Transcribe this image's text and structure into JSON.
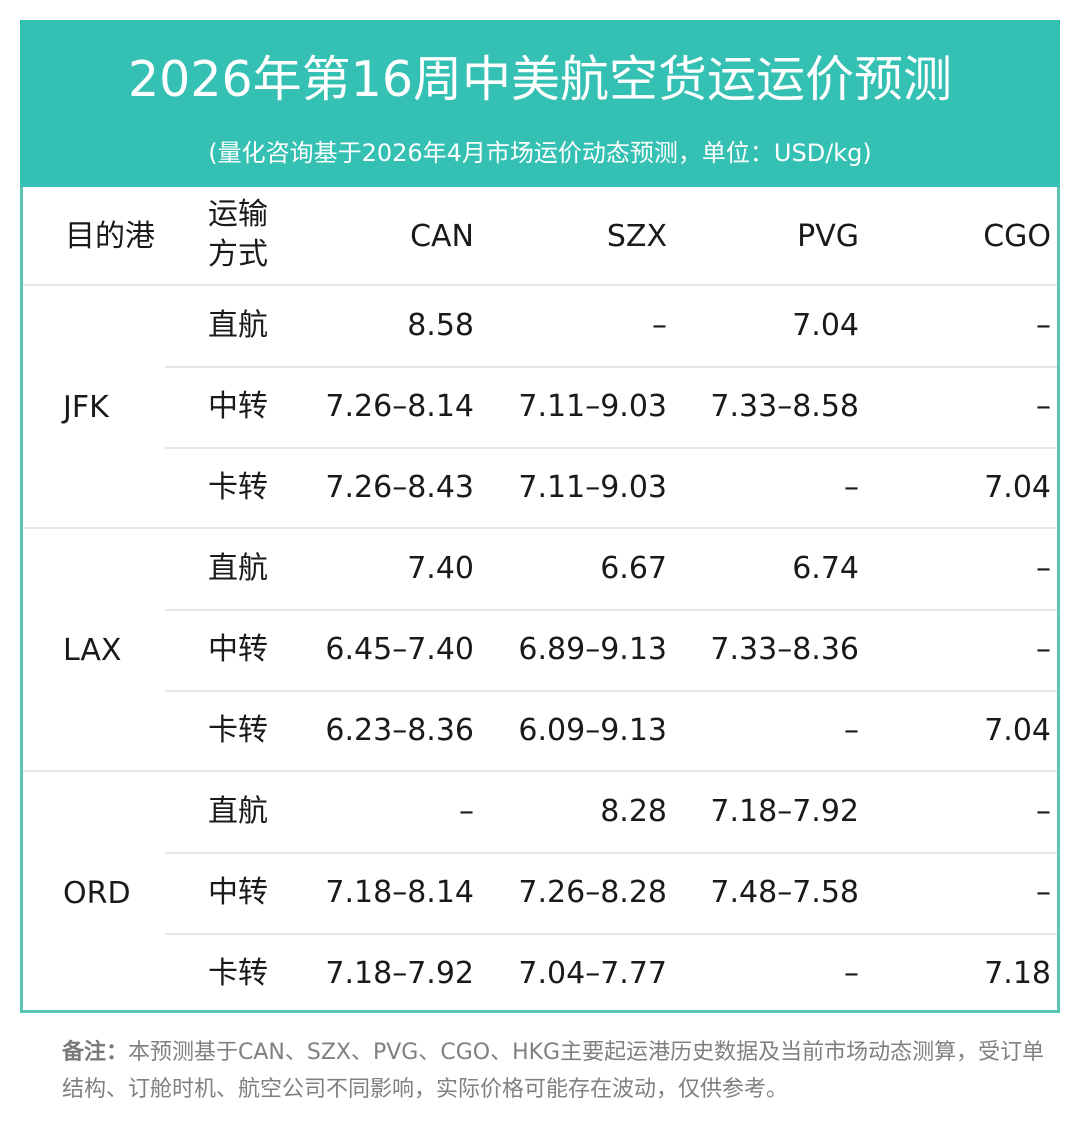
{
  "header": {
    "title": "2026年第16周中美航空货运运价预测",
    "subtitle": "(量化咨询基于2026年4月市场运价动态预测，单位：USD/kg)"
  },
  "colors": {
    "header_bg": "#34c0b2",
    "border": "#5cc4b7",
    "row_separator": "#e6e6e6",
    "note_text": "#808080"
  },
  "table": {
    "columns": {
      "dest": "目的港",
      "mode_line1": "运输",
      "mode_line2": "方式",
      "can": "CAN",
      "szx": "SZX",
      "pvg": "PVG",
      "cgo": "CGO"
    },
    "groups": [
      {
        "dest": "JFK",
        "rows": [
          {
            "mode": "直航",
            "can": "8.58",
            "szx": "–",
            "pvg": "7.04",
            "cgo": "–"
          },
          {
            "mode": "中转",
            "can": "7.26–8.14",
            "szx": "7.11–9.03",
            "pvg": "7.33–8.58",
            "cgo": "–"
          },
          {
            "mode": "卡转",
            "can": "7.26–8.43",
            "szx": "7.11–9.03",
            "pvg": "–",
            "cgo": "7.04"
          }
        ]
      },
      {
        "dest": "LAX",
        "rows": [
          {
            "mode": "直航",
            "can": "7.40",
            "szx": "6.67",
            "pvg": "6.74",
            "cgo": "–"
          },
          {
            "mode": "中转",
            "can": "6.45–7.40",
            "szx": "6.89–9.13",
            "pvg": "7.33–8.36",
            "cgo": "–"
          },
          {
            "mode": "卡转",
            "can": "6.23–8.36",
            "szx": "6.09–9.13",
            "pvg": "–",
            "cgo": "7.04"
          }
        ]
      },
      {
        "dest": "ORD",
        "rows": [
          {
            "mode": "直航",
            "can": "–",
            "szx": "8.28",
            "pvg": "7.18–7.92",
            "cgo": "–"
          },
          {
            "mode": "中转",
            "can": "7.18–8.14",
            "szx": "7.26–8.28",
            "pvg": "7.48–7.58",
            "cgo": "–"
          },
          {
            "mode": "卡转",
            "can": "7.18–7.92",
            "szx": "7.04–7.77",
            "pvg": "–",
            "cgo": "7.18"
          }
        ]
      }
    ]
  },
  "note": {
    "label": "备注：",
    "text": "本预测基于CAN、SZX、PVG、CGO、HKG主要起运港历史数据及当前市场动态测算，受订单结构、订舱时机、航空公司不同影响，实际价格可能存在波动，仅供参考。"
  }
}
